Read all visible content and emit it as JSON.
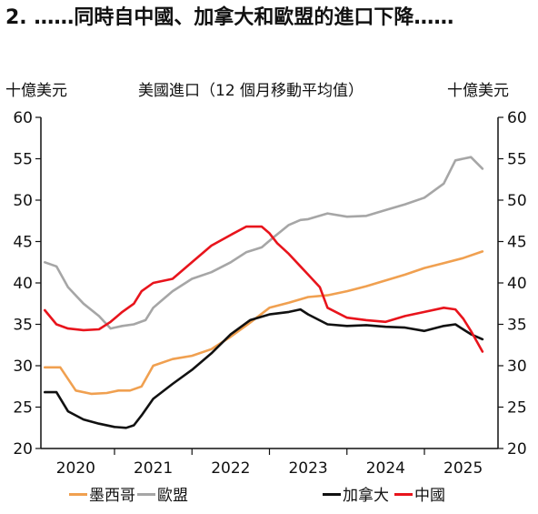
{
  "title": "2. ……同時自中國、加拿大和歐盟的進口下降……",
  "unit_left": "十億美元",
  "unit_right": "十億美元",
  "chart_data": {
    "type": "line",
    "title": "美國進口（12 個月移動平均值）",
    "ylabel": "十億美元",
    "ylim": [
      20,
      60
    ],
    "yticks": [
      20,
      25,
      30,
      35,
      40,
      45,
      50,
      55,
      60
    ],
    "xlim": [
      2019.55,
      2025.45
    ],
    "xticks": [
      "2020",
      "2021",
      "2022",
      "2023",
      "2024",
      "2025"
    ],
    "grid": false,
    "legend_position": "bottom",
    "series": [
      {
        "name": "墨西哥",
        "color": "#f0a050",
        "x": [
          2019.6,
          2019.8,
          2020.0,
          2020.2,
          2020.4,
          2020.55,
          2020.7,
          2020.85,
          2021.0,
          2021.25,
          2021.5,
          2021.75,
          2022.0,
          2022.25,
          2022.5,
          2022.75,
          2023.0,
          2023.25,
          2023.5,
          2023.75,
          2024.0,
          2024.25,
          2024.5,
          2024.75,
          2025.0,
          2025.25
        ],
        "y": [
          29.8,
          29.8,
          27.0,
          26.6,
          26.7,
          27.0,
          27.0,
          27.5,
          30.0,
          30.8,
          31.2,
          32.0,
          33.5,
          35.2,
          37.0,
          37.6,
          38.3,
          38.5,
          39.0,
          39.6,
          40.3,
          41.0,
          41.8,
          42.4,
          43.0,
          43.8
        ]
      },
      {
        "name": "歐盟",
        "color": "#a6a6a6",
        "x": [
          2019.6,
          2019.75,
          2019.9,
          2020.1,
          2020.3,
          2020.45,
          2020.6,
          2020.75,
          2020.9,
          2021.0,
          2021.1,
          2021.25,
          2021.5,
          2021.75,
          2022.0,
          2022.2,
          2022.4,
          2022.55,
          2022.75,
          2022.9,
          2023.0,
          2023.25,
          2023.5,
          2023.75,
          2024.0,
          2024.25,
          2024.5,
          2024.75,
          2024.9,
          2025.0,
          2025.1,
          2025.25
        ],
        "y": [
          42.5,
          42.0,
          39.5,
          37.5,
          36.0,
          34.5,
          34.8,
          35.0,
          35.5,
          37.0,
          37.8,
          39.0,
          40.5,
          41.3,
          42.5,
          43.7,
          44.3,
          45.5,
          47.0,
          47.6,
          47.7,
          48.4,
          48.0,
          48.1,
          48.8,
          49.5,
          50.3,
          52.0,
          54.8,
          55.0,
          55.2,
          53.8
        ]
      },
      {
        "name": "加拿大",
        "color": "#111111",
        "x": [
          2019.6,
          2019.75,
          2019.9,
          2020.1,
          2020.3,
          2020.5,
          2020.65,
          2020.75,
          2020.85,
          2021.0,
          2021.25,
          2021.5,
          2021.75,
          2022.0,
          2022.25,
          2022.5,
          2022.75,
          2022.9,
          2023.0,
          2023.25,
          2023.5,
          2023.75,
          2024.0,
          2024.25,
          2024.5,
          2024.75,
          2024.9,
          2025.0,
          2025.1,
          2025.25
        ],
        "y": [
          26.8,
          26.8,
          24.5,
          23.5,
          23.0,
          22.6,
          22.5,
          22.8,
          24.0,
          26.0,
          27.8,
          29.5,
          31.5,
          33.8,
          35.5,
          36.2,
          36.5,
          36.8,
          36.2,
          35.0,
          34.8,
          34.9,
          34.7,
          34.6,
          34.2,
          34.8,
          35.0,
          34.4,
          33.8,
          33.2
        ]
      },
      {
        "name": "中國",
        "color": "#e8141c",
        "x": [
          2019.6,
          2019.75,
          2019.9,
          2020.1,
          2020.3,
          2020.45,
          2020.6,
          2020.75,
          2020.85,
          2021.0,
          2021.25,
          2021.5,
          2021.75,
          2022.0,
          2022.2,
          2022.4,
          2022.5,
          2022.6,
          2022.75,
          2022.9,
          2023.0,
          2023.15,
          2023.25,
          2023.5,
          2023.75,
          2024.0,
          2024.25,
          2024.5,
          2024.75,
          2024.9,
          2025.0,
          2025.1,
          2025.25
        ],
        "y": [
          36.7,
          35.0,
          34.5,
          34.3,
          34.4,
          35.3,
          36.5,
          37.5,
          39.0,
          40.0,
          40.5,
          42.5,
          44.5,
          45.8,
          46.8,
          46.8,
          46.0,
          44.8,
          43.5,
          42.0,
          41.0,
          39.5,
          37.0,
          35.8,
          35.5,
          35.3,
          36.0,
          36.5,
          37.0,
          36.8,
          35.7,
          34.2,
          31.7
        ]
      }
    ]
  }
}
